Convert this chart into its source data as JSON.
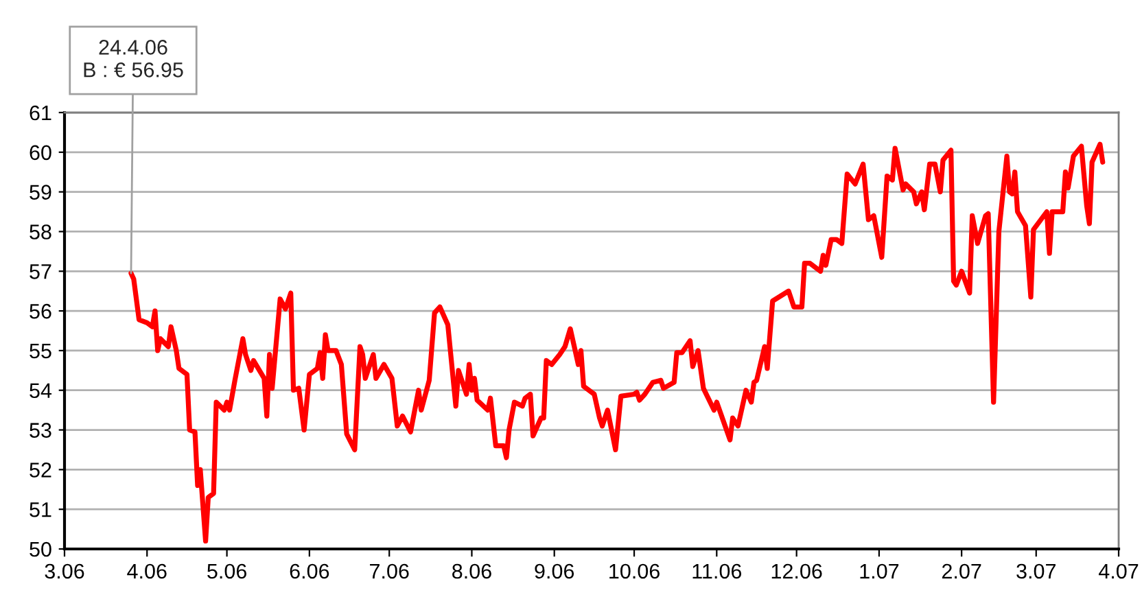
{
  "chart_data": {
    "type": "line",
    "x": [
      "2006-03-26",
      "2006-03-27",
      "2006-03-29",
      "2006-04-01",
      "2006-04-03",
      "2006-04-04",
      "2006-04-05",
      "2006-04-06",
      "2006-04-09",
      "2006-04-10",
      "2006-04-12",
      "2006-04-13",
      "2006-04-16",
      "2006-04-17",
      "2006-04-19",
      "2006-04-20",
      "2006-04-21",
      "2006-04-23",
      "2006-04-24",
      "2006-04-26",
      "2006-04-27",
      "2006-04-30",
      "2006-05-01",
      "2006-05-02",
      "2006-05-04",
      "2006-05-07",
      "2006-05-08",
      "2006-05-10",
      "2006-05-11",
      "2006-05-15",
      "2006-05-16",
      "2006-05-17",
      "2006-05-18",
      "2006-05-21",
      "2006-05-23",
      "2006-05-25",
      "2006-05-26",
      "2006-05-28",
      "2006-05-30",
      "2006-06-01",
      "2006-06-04",
      "2006-06-05",
      "2006-06-06",
      "2006-06-07",
      "2006-06-08",
      "2006-06-11",
      "2006-06-13",
      "2006-06-15",
      "2006-06-18",
      "2006-06-20",
      "2006-06-21",
      "2006-06-22",
      "2006-06-25",
      "2006-06-26",
      "2006-06-29",
      "2006-07-02",
      "2006-07-04",
      "2006-07-06",
      "2006-07-09",
      "2006-07-12",
      "2006-07-13",
      "2006-07-16",
      "2006-07-18",
      "2006-07-20",
      "2006-07-23",
      "2006-07-26",
      "2006-07-27",
      "2006-07-30",
      "2006-07-31",
      "2006-08-01",
      "2006-08-02",
      "2006-08-03",
      "2006-08-07",
      "2006-08-08",
      "2006-08-10",
      "2006-08-13",
      "2006-08-14",
      "2006-08-15",
      "2006-08-17",
      "2006-08-20",
      "2006-08-21",
      "2006-08-23",
      "2006-08-24",
      "2006-08-27",
      "2006-08-28",
      "2006-08-29",
      "2006-08-31",
      "2006-09-03",
      "2006-09-05",
      "2006-09-07",
      "2006-09-10",
      "2006-09-11",
      "2006-09-12",
      "2006-09-16",
      "2006-09-18",
      "2006-09-19",
      "2006-09-21",
      "2006-09-24",
      "2006-09-26",
      "2006-10-01",
      "2006-10-02",
      "2006-10-03",
      "2006-10-05",
      "2006-10-08",
      "2006-10-11",
      "2006-10-12",
      "2006-10-16",
      "2006-10-17",
      "2006-10-19",
      "2006-10-22",
      "2006-10-23",
      "2006-10-25",
      "2006-10-27",
      "2006-10-31",
      "2006-11-01",
      "2006-11-06",
      "2006-11-07",
      "2006-11-09",
      "2006-11-12",
      "2006-11-14",
      "2006-11-15",
      "2006-11-16",
      "2006-11-19",
      "2006-11-20",
      "2006-11-22",
      "2006-11-28",
      "2006-11-30",
      "2006-12-03",
      "2006-12-04",
      "2006-12-06",
      "2006-12-10",
      "2006-12-11",
      "2006-12-12",
      "2006-12-14",
      "2006-12-16",
      "2006-12-18",
      "2006-12-20",
      "2006-12-23",
      "2006-12-26",
      "2006-12-28",
      "2006-12-30",
      "2007-01-02",
      "2007-01-04",
      "2007-01-06",
      "2007-01-07",
      "2007-01-10",
      "2007-01-11",
      "2007-01-14",
      "2007-01-15",
      "2007-01-17",
      "2007-01-18",
      "2007-01-20",
      "2007-01-22",
      "2007-01-24",
      "2007-01-25",
      "2007-01-28",
      "2007-01-29",
      "2007-01-30",
      "2007-02-01",
      "2007-02-04",
      "2007-02-05",
      "2007-02-07",
      "2007-02-10",
      "2007-02-11",
      "2007-02-13",
      "2007-02-15",
      "2007-02-18",
      "2007-02-19",
      "2007-02-20",
      "2007-02-21",
      "2007-02-22",
      "2007-02-25",
      "2007-02-27",
      "2007-02-28",
      "2007-03-05",
      "2007-03-06",
      "2007-03-07",
      "2007-03-11",
      "2007-03-12",
      "2007-03-13",
      "2007-03-15",
      "2007-03-18",
      "2007-03-20",
      "2007-03-21",
      "2007-03-22",
      "2007-03-25",
      "2007-03-26"
    ],
    "series": [
      {
        "color": "#ff0000",
        "values": [
          56.95,
          56.8,
          55.78,
          55.7,
          55.6,
          56.0,
          55.0,
          55.3,
          55.1,
          55.6,
          55.0,
          54.55,
          54.4,
          53.0,
          52.95,
          51.6,
          52.0,
          50.2,
          51.3,
          51.4,
          53.7,
          53.5,
          53.7,
          53.5,
          54.25,
          55.3,
          54.9,
          54.5,
          54.75,
          54.3,
          53.35,
          54.9,
          54.05,
          56.3,
          56.05,
          56.45,
          54.0,
          54.05,
          53.0,
          54.4,
          54.55,
          54.95,
          54.3,
          55.4,
          55.0,
          55.0,
          54.65,
          52.9,
          52.5,
          55.1,
          54.9,
          54.3,
          54.9,
          54.3,
          54.65,
          54.3,
          53.1,
          53.35,
          52.95,
          54.0,
          53.5,
          54.25,
          55.95,
          56.1,
          55.65,
          53.6,
          54.5,
          53.9,
          54.65,
          54.0,
          54.3,
          53.75,
          53.5,
          53.8,
          52.6,
          52.6,
          52.3,
          53.0,
          53.7,
          53.6,
          53.8,
          53.9,
          52.85,
          53.3,
          53.3,
          54.75,
          54.65,
          54.9,
          55.1,
          55.55,
          54.65,
          55.0,
          54.1,
          53.9,
          53.3,
          53.1,
          53.5,
          52.5,
          53.85,
          53.9,
          53.95,
          53.75,
          53.9,
          54.2,
          54.25,
          54.05,
          54.2,
          54.95,
          54.95,
          55.25,
          54.6,
          55.0,
          54.05,
          53.5,
          53.7,
          52.75,
          53.3,
          53.1,
          54.0,
          53.7,
          54.2,
          54.25,
          55.1,
          54.55,
          56.25,
          56.5,
          56.1,
          56.1,
          57.2,
          57.2,
          57.0,
          57.4,
          57.15,
          57.8,
          57.8,
          57.7,
          59.45,
          59.2,
          59.7,
          58.3,
          58.4,
          57.35,
          59.4,
          59.3,
          60.1,
          59.05,
          59.2,
          59.0,
          58.7,
          59.0,
          58.55,
          59.7,
          59.7,
          59.0,
          59.8,
          60.05,
          56.75,
          56.65,
          57.0,
          56.45,
          58.4,
          57.7,
          58.4,
          58.45,
          53.7,
          58.0,
          59.9,
          59.0,
          58.95,
          59.5,
          58.5,
          58.15,
          56.35,
          58.05,
          58.5,
          57.45,
          58.5,
          58.5,
          59.5,
          59.1,
          59.9,
          60.15,
          58.65,
          58.2,
          59.75,
          60.2,
          59.75
        ]
      }
    ],
    "xlim": [
      "2006-03-01",
      "2007-04-01"
    ],
    "xticks": [
      {
        "value": "2006-03-01",
        "label": "3.06"
      },
      {
        "value": "2006-04-01",
        "label": "4.06"
      },
      {
        "value": "2006-05-01",
        "label": "5.06"
      },
      {
        "value": "2006-06-01",
        "label": "6.06"
      },
      {
        "value": "2006-07-01",
        "label": "7.06"
      },
      {
        "value": "2006-08-01",
        "label": "8.06"
      },
      {
        "value": "2006-09-01",
        "label": "9.06"
      },
      {
        "value": "2006-10-01",
        "label": "10.06"
      },
      {
        "value": "2006-11-01",
        "label": "11.06"
      },
      {
        "value": "2006-12-01",
        "label": "12.06"
      },
      {
        "value": "2007-01-01",
        "label": "1.07"
      },
      {
        "value": "2007-02-01",
        "label": "2.07"
      },
      {
        "value": "2007-03-01",
        "label": "3.07"
      },
      {
        "value": "2007-04-01",
        "label": "4.07"
      }
    ],
    "ylim": [
      50,
      61
    ],
    "yticks": [
      50,
      51,
      52,
      53,
      54,
      55,
      56,
      57,
      58,
      59,
      60,
      61
    ],
    "grid": "y",
    "annotations": [
      {
        "text": "24.4.06\nB : € 56.95",
        "x": "2006-03-26",
        "y": 56.95
      }
    ]
  }
}
